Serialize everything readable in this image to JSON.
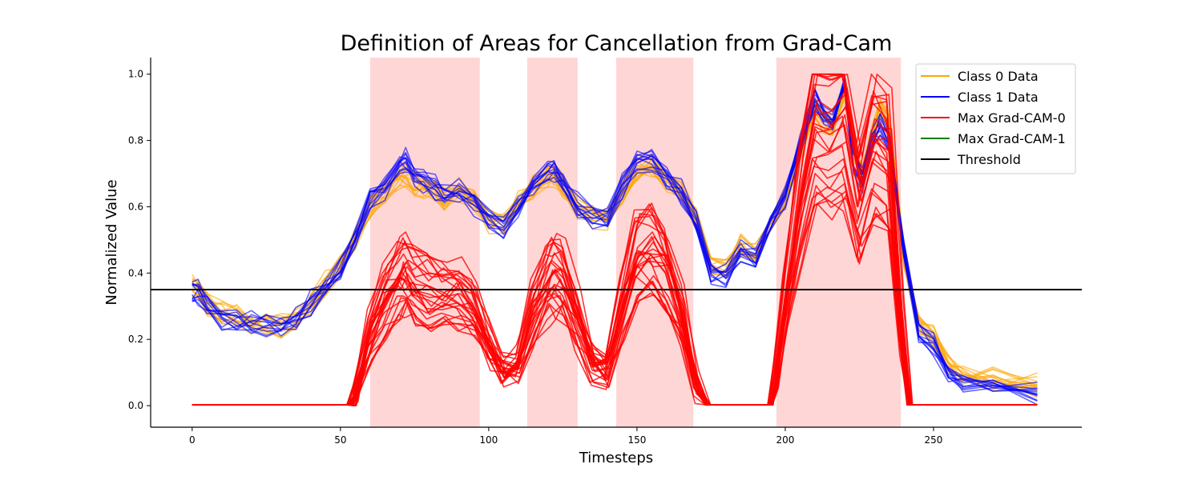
{
  "chart_data": {
    "type": "line",
    "title": "Definition of Areas for Cancellation from Grad-Cam",
    "xlabel": "Timesteps",
    "ylabel": "Normalized Value",
    "xlim": [
      -14,
      300
    ],
    "ylim": [
      -0.065,
      1.05
    ],
    "xticks": [
      0,
      50,
      100,
      150,
      200,
      250
    ],
    "yticks": [
      0.0,
      0.2,
      0.4,
      0.6,
      0.8,
      1.0
    ],
    "grid": false,
    "legend_position": "top-right",
    "threshold": 0.35,
    "highlight_regions": [
      [
        60,
        97
      ],
      [
        113,
        130
      ],
      [
        143,
        169
      ],
      [
        197,
        239
      ]
    ],
    "colors": {
      "class0": "#ffa500",
      "class1": "#0000ff",
      "gradcam0": "#ff0000",
      "gradcam1": "#008000",
      "threshold": "#000000",
      "region": "#ffd6d6"
    },
    "series": [
      {
        "name": "Class 0 Data",
        "color": "#ffa500",
        "x": [
          0,
          2,
          5,
          10,
          15,
          20,
          25,
          30,
          35,
          40,
          45,
          50,
          55,
          60,
          65,
          70,
          72,
          75,
          78,
          82,
          85,
          90,
          95,
          100,
          105,
          110,
          115,
          120,
          122,
          125,
          130,
          135,
          140,
          145,
          150,
          155,
          160,
          165,
          170,
          175,
          180,
          185,
          190,
          195,
          200,
          205,
          210,
          213,
          216,
          220,
          223,
          226,
          229,
          232,
          235,
          240,
          245,
          250,
          255,
          260,
          270,
          285
        ],
        "values": [
          0.36,
          0.35,
          0.31,
          0.28,
          0.27,
          0.25,
          0.24,
          0.245,
          0.26,
          0.31,
          0.37,
          0.42,
          0.5,
          0.6,
          0.64,
          0.69,
          0.7,
          0.67,
          0.66,
          0.65,
          0.62,
          0.655,
          0.62,
          0.555,
          0.545,
          0.61,
          0.66,
          0.69,
          0.7,
          0.665,
          0.6,
          0.565,
          0.555,
          0.64,
          0.715,
          0.725,
          0.68,
          0.64,
          0.56,
          0.42,
          0.42,
          0.48,
          0.46,
          0.545,
          0.62,
          0.76,
          0.89,
          0.86,
          0.84,
          0.96,
          0.78,
          0.7,
          0.8,
          0.89,
          0.85,
          0.45,
          0.25,
          0.21,
          0.12,
          0.09,
          0.08,
          0.06
        ]
      },
      {
        "name": "Class 1 Data",
        "color": "#0000ff",
        "x": [
          0,
          2,
          5,
          10,
          15,
          20,
          25,
          30,
          35,
          40,
          45,
          50,
          55,
          60,
          65,
          70,
          72,
          75,
          78,
          82,
          85,
          90,
          95,
          100,
          105,
          110,
          115,
          120,
          122,
          125,
          130,
          135,
          140,
          145,
          150,
          155,
          160,
          165,
          170,
          175,
          180,
          185,
          190,
          195,
          200,
          205,
          210,
          213,
          216,
          220,
          223,
          226,
          229,
          232,
          235,
          240,
          245,
          250,
          255,
          260,
          270,
          285
        ],
        "values": [
          0.35,
          0.34,
          0.3,
          0.265,
          0.255,
          0.245,
          0.24,
          0.24,
          0.26,
          0.31,
          0.36,
          0.41,
          0.51,
          0.62,
          0.66,
          0.73,
          0.74,
          0.7,
          0.68,
          0.66,
          0.64,
          0.65,
          0.61,
          0.565,
          0.545,
          0.61,
          0.665,
          0.7,
          0.705,
          0.67,
          0.605,
          0.57,
          0.56,
          0.66,
          0.735,
          0.745,
          0.695,
          0.645,
          0.55,
          0.4,
          0.395,
          0.47,
          0.445,
          0.55,
          0.63,
          0.79,
          0.93,
          0.88,
          0.855,
          0.97,
          0.74,
          0.68,
          0.79,
          0.84,
          0.8,
          0.48,
          0.23,
          0.19,
          0.1,
          0.07,
          0.06,
          0.04
        ]
      },
      {
        "name": "Max Grad-CAM-0",
        "color": "#ff0000",
        "x": [
          0,
          53,
          55,
          60,
          65,
          70,
          72,
          75,
          80,
          85,
          90,
          95,
          100,
          105,
          110,
          115,
          120,
          122,
          125,
          130,
          135,
          140,
          145,
          150,
          155,
          160,
          165,
          170,
          174,
          180,
          190,
          195,
          197,
          200,
          205,
          210,
          215,
          220,
          225,
          230,
          235,
          239,
          242,
          250,
          285
        ],
        "values": [
          0.0,
          0.0,
          0.04,
          0.24,
          0.37,
          0.45,
          0.46,
          0.42,
          0.4,
          0.39,
          0.38,
          0.34,
          0.22,
          0.12,
          0.14,
          0.32,
          0.43,
          0.45,
          0.43,
          0.3,
          0.15,
          0.12,
          0.34,
          0.52,
          0.55,
          0.48,
          0.31,
          0.07,
          0.0,
          0.0,
          0.0,
          0.0,
          0.1,
          0.35,
          0.7,
          0.95,
          0.93,
          0.98,
          0.7,
          0.9,
          0.85,
          0.3,
          0.0,
          0.0,
          0.0
        ]
      },
      {
        "name": "Max Grad-CAM-1",
        "color": "#008000",
        "x": [],
        "values": []
      },
      {
        "name": "Threshold",
        "color": "#000000",
        "x": [
          -14,
          300
        ],
        "values": [
          0.35,
          0.35
        ]
      }
    ]
  }
}
